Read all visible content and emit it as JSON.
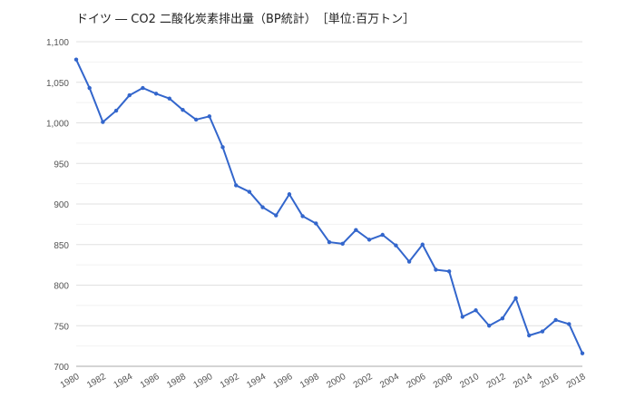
{
  "chart_data": {
    "type": "line",
    "title": "ドイツ ― CO2 二酸化炭素排出量（BP統計）　［単位:百万トン］",
    "xlabel": "",
    "ylabel": "",
    "x": [
      1980,
      1981,
      1982,
      1983,
      1984,
      1985,
      1986,
      1987,
      1988,
      1989,
      1990,
      1991,
      1992,
      1993,
      1994,
      1995,
      1996,
      1997,
      1998,
      1999,
      2000,
      2001,
      2002,
      2003,
      2004,
      2005,
      2006,
      2007,
      2008,
      2009,
      2010,
      2011,
      2012,
      2013,
      2014,
      2015,
      2016,
      2017,
      2018
    ],
    "series": [
      {
        "values": [
          1078,
          1043,
          1001,
          1015,
          1034,
          1043,
          1036,
          1030,
          1016,
          1004,
          1008,
          970,
          923,
          915,
          896,
          886,
          912,
          885,
          876,
          853,
          851,
          868,
          856,
          862,
          849,
          829,
          850,
          819,
          817,
          761,
          769,
          750,
          759,
          784,
          738,
          743,
          757,
          752,
          716
        ]
      }
    ],
    "ylim": [
      700,
      1100
    ],
    "y_ticks": [
      "700",
      "750",
      "800",
      "850",
      "900",
      "950",
      "1,000",
      "1,050",
      "1,100"
    ],
    "x_ticks": [
      "1980",
      "1982",
      "1984",
      "1986",
      "1988",
      "1990",
      "1992",
      "1994",
      "1996",
      "1998",
      "2000",
      "2002",
      "2004",
      "2006",
      "2008",
      "2010",
      "2012",
      "2014",
      "2016",
      "2018"
    ],
    "grid": true,
    "legend": "none",
    "colors": {
      "line": "#3366cc",
      "grid": "#e0e0e0",
      "axis_text": "#555555"
    }
  }
}
